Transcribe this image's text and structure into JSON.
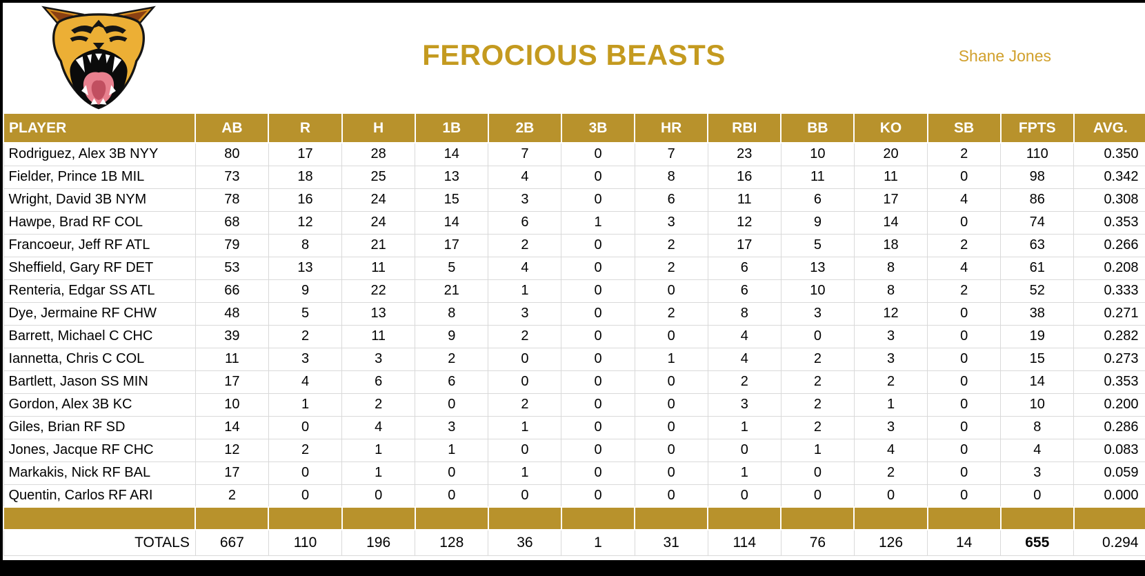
{
  "header": {
    "title": "FEROCIOUS BEASTS",
    "owner": "Shane Jones",
    "logo_icon": "roaring-beast-head-icon"
  },
  "colors": {
    "header_gold": "#B8922C",
    "title_gold": "#C49A1F",
    "owner_gold": "#D1A02C",
    "grid_line": "#D9D9D9"
  },
  "table": {
    "columns": [
      "PLAYER",
      "AB",
      "R",
      "H",
      "1B",
      "2B",
      "3B",
      "HR",
      "RBI",
      "BB",
      "KO",
      "SB",
      "FPTS",
      "AVG."
    ],
    "players": [
      {
        "name": "Rodriguez, Alex 3B NYY",
        "stats": [
          "80",
          "17",
          "28",
          "14",
          "7",
          "0",
          "7",
          "23",
          "10",
          "20",
          "2",
          "110",
          "0.350"
        ]
      },
      {
        "name": "Fielder, Prince 1B MIL",
        "stats": [
          "73",
          "18",
          "25",
          "13",
          "4",
          "0",
          "8",
          "16",
          "11",
          "11",
          "0",
          "98",
          "0.342"
        ]
      },
      {
        "name": "Wright, David 3B NYM",
        "stats": [
          "78",
          "16",
          "24",
          "15",
          "3",
          "0",
          "6",
          "11",
          "6",
          "17",
          "4",
          "86",
          "0.308"
        ]
      },
      {
        "name": "Hawpe, Brad RF COL",
        "stats": [
          "68",
          "12",
          "24",
          "14",
          "6",
          "1",
          "3",
          "12",
          "9",
          "14",
          "0",
          "74",
          "0.353"
        ]
      },
      {
        "name": "Francoeur, Jeff RF ATL",
        "stats": [
          "79",
          "8",
          "21",
          "17",
          "2",
          "0",
          "2",
          "17",
          "5",
          "18",
          "2",
          "63",
          "0.266"
        ]
      },
      {
        "name": "Sheffield, Gary RF DET",
        "stats": [
          "53",
          "13",
          "11",
          "5",
          "4",
          "0",
          "2",
          "6",
          "13",
          "8",
          "4",
          "61",
          "0.208"
        ]
      },
      {
        "name": "Renteria, Edgar SS ATL",
        "stats": [
          "66",
          "9",
          "22",
          "21",
          "1",
          "0",
          "0",
          "6",
          "10",
          "8",
          "2",
          "52",
          "0.333"
        ]
      },
      {
        "name": "Dye, Jermaine RF CHW",
        "stats": [
          "48",
          "5",
          "13",
          "8",
          "3",
          "0",
          "2",
          "8",
          "3",
          "12",
          "0",
          "38",
          "0.271"
        ]
      },
      {
        "name": "Barrett, Michael C CHC",
        "stats": [
          "39",
          "2",
          "11",
          "9",
          "2",
          "0",
          "0",
          "4",
          "0",
          "3",
          "0",
          "19",
          "0.282"
        ]
      },
      {
        "name": "Iannetta, Chris C COL",
        "stats": [
          "11",
          "3",
          "3",
          "2",
          "0",
          "0",
          "1",
          "4",
          "2",
          "3",
          "0",
          "15",
          "0.273"
        ]
      },
      {
        "name": "Bartlett, Jason SS MIN",
        "stats": [
          "17",
          "4",
          "6",
          "6",
          "0",
          "0",
          "0",
          "2",
          "2",
          "2",
          "0",
          "14",
          "0.353"
        ]
      },
      {
        "name": "Gordon, Alex 3B KC",
        "stats": [
          "10",
          "1",
          "2",
          "0",
          "2",
          "0",
          "0",
          "3",
          "2",
          "1",
          "0",
          "10",
          "0.200"
        ]
      },
      {
        "name": "Giles, Brian RF SD",
        "stats": [
          "14",
          "0",
          "4",
          "3",
          "1",
          "0",
          "0",
          "1",
          "2",
          "3",
          "0",
          "8",
          "0.286"
        ]
      },
      {
        "name": "Jones, Jacque RF CHC",
        "stats": [
          "12",
          "2",
          "1",
          "1",
          "0",
          "0",
          "0",
          "0",
          "1",
          "4",
          "0",
          "4",
          "0.083"
        ]
      },
      {
        "name": "Markakis, Nick RF BAL",
        "stats": [
          "17",
          "0",
          "1",
          "0",
          "1",
          "0",
          "0",
          "1",
          "0",
          "2",
          "0",
          "3",
          "0.059"
        ]
      },
      {
        "name": "Quentin, Carlos RF ARI",
        "stats": [
          "2",
          "0",
          "0",
          "0",
          "0",
          "0",
          "0",
          "0",
          "0",
          "0",
          "0",
          "0",
          "0.000"
        ]
      }
    ],
    "totals": {
      "label": "TOTALS",
      "stats": [
        "667",
        "110",
        "196",
        "128",
        "36",
        "1",
        "31",
        "114",
        "76",
        "126",
        "14",
        "655",
        "0.294"
      ]
    }
  }
}
